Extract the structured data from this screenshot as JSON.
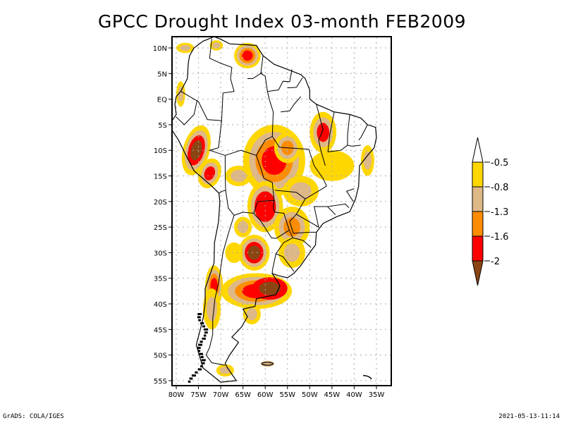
{
  "title": "GPCC Drought Index 03-month FEB2009",
  "map": {
    "region": "South America",
    "lat_ticks": [
      "10N",
      "5N",
      "EQ",
      "5S",
      "10S",
      "15S",
      "20S",
      "25S",
      "30S",
      "35S",
      "40S",
      "45S",
      "50S",
      "55S"
    ],
    "lon_ticks": [
      "80W",
      "75W",
      "70W",
      "65W",
      "60W",
      "55W",
      "50W",
      "45W",
      "40W",
      "35W"
    ],
    "lat_values": [
      10,
      5,
      0,
      -5,
      -10,
      -15,
      -20,
      -25,
      -30,
      -35,
      -40,
      -45,
      -50,
      -55
    ],
    "lon_values": [
      -80,
      -75,
      -70,
      -65,
      -60,
      -55,
      -50,
      -45,
      -40,
      -35
    ],
    "lon_range": [
      -81,
      -33
    ],
    "lat_range": [
      12.5,
      -56
    ]
  },
  "colorbar": {
    "labels": [
      "-0.5",
      "-0.8",
      "-1.3",
      "-1.6",
      "-2"
    ],
    "colors": {
      "above": "#ffffff",
      "c1": "#ffd700",
      "c2": "#deb887",
      "c3": "#ff8c00",
      "c4": "#ff0000",
      "below": "#8b4513"
    }
  },
  "footer": {
    "left": "GrADS: COLA/IGES",
    "right": "2021-05-13-11:14"
  }
}
